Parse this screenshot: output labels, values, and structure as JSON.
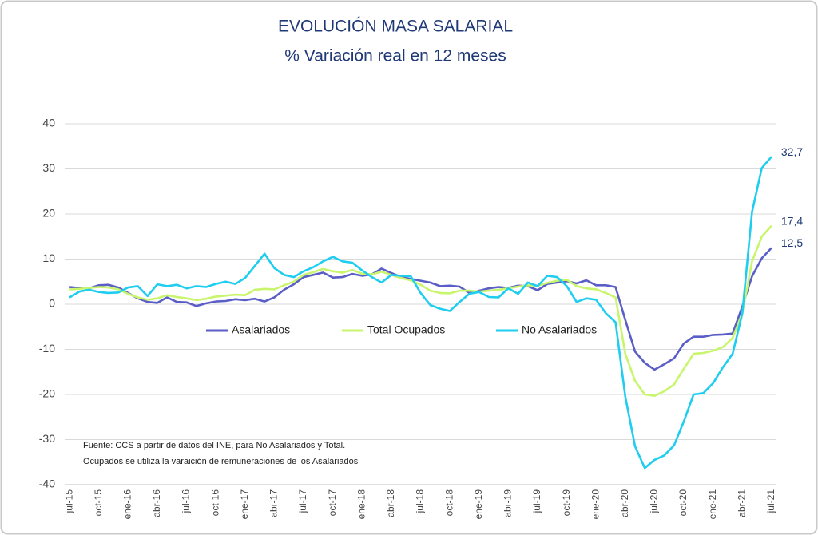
{
  "chart_data": {
    "type": "line",
    "title": "EVOLUCIÓN MASA SALARIAL",
    "subtitle": "% Variación real en 12 meses",
    "categories": [
      "jul-15",
      null,
      null,
      "oct-15",
      null,
      null,
      "ene-16",
      null,
      null,
      "abr-16",
      null,
      null,
      "jul-16",
      null,
      null,
      "oct-16",
      null,
      null,
      "ene-17",
      null,
      null,
      "abr-17",
      null,
      null,
      "jul-17",
      null,
      null,
      "oct-17",
      null,
      null,
      "ene-18",
      null,
      null,
      "abr-18",
      null,
      null,
      "jul-18",
      null,
      null,
      "oct-18",
      null,
      null,
      "ene-19",
      null,
      null,
      "abr-19",
      null,
      null,
      "jul-19",
      null,
      null,
      "oct-19",
      null,
      null,
      "ene-20",
      null,
      null,
      "abr-20",
      null,
      null,
      "jul-20",
      null,
      null,
      "oct-20",
      null,
      null,
      "ene-21",
      null,
      null,
      "abr-21",
      null,
      null,
      "jul-21"
    ],
    "ylim": [
      -40,
      40
    ],
    "yticks": [
      -40,
      -30,
      -20,
      -10,
      0,
      10,
      20,
      30,
      40
    ],
    "grid": true,
    "legend": "center",
    "note": [
      "Fuente: CCS a partir de datos del INE, para No Asalariados y Total.",
      "Ocupados se utiliza la varaición de remuneraciones de los Asalariados"
    ],
    "series": [
      {
        "name": "Asalariados",
        "color": "#5a5ec6",
        "values": [
          3.8,
          3.6,
          3.5,
          4.2,
          4.3,
          3.7,
          2.5,
          1.3,
          0.5,
          0.3,
          1.5,
          0.5,
          0.4,
          -0.4,
          0.2,
          0.6,
          0.7,
          1.1,
          0.9,
          1.2,
          0.6,
          1.5,
          3.2,
          4.4,
          6.0,
          6.5,
          7.0,
          5.9,
          6.0,
          6.7,
          6.3,
          6.6,
          7.9,
          6.9,
          6.0,
          5.6,
          5.2,
          4.8,
          4.0,
          4.1,
          3.9,
          2.5,
          3.0,
          3.5,
          3.8,
          3.6,
          4.1,
          4.0,
          3.1,
          4.5,
          4.8,
          5.1,
          4.6,
          5.3,
          4.2,
          4.2,
          3.8,
          -3.5,
          -10.5,
          -13.0,
          -14.5,
          -13.3,
          -12.0,
          -8.7,
          -7.2,
          -7.2,
          -6.8,
          -6.7,
          -6.5,
          -0.5,
          6.2,
          10.2,
          12.5
        ],
        "value_labels": [
          null,
          null,
          null,
          null,
          null,
          null,
          null,
          null,
          null,
          null,
          null,
          null,
          null,
          null,
          null,
          null,
          null,
          null,
          null,
          null,
          null,
          null,
          null,
          null,
          null,
          null,
          null,
          null,
          null,
          null,
          null,
          null,
          null,
          null,
          null,
          null,
          null,
          null,
          null,
          null,
          null,
          null,
          null,
          null,
          null,
          null,
          null,
          null,
          null,
          null,
          null,
          null,
          null,
          null,
          null,
          null,
          null,
          null,
          null,
          null,
          null,
          null,
          null,
          null,
          null,
          null,
          null,
          null,
          null,
          null,
          null,
          null,
          "12,5"
        ]
      },
      {
        "name": "Total Ocupados",
        "color": "#c8f56c",
        "values": [
          3.3,
          3.4,
          3.6,
          3.8,
          3.7,
          3.3,
          2.3,
          1.5,
          1.0,
          1.3,
          2.0,
          1.6,
          1.3,
          0.9,
          1.2,
          1.7,
          1.9,
          2.1,
          2.0,
          3.2,
          3.4,
          3.3,
          4.2,
          5.0,
          6.5,
          7.1,
          7.8,
          7.3,
          7.0,
          7.6,
          6.8,
          6.6,
          7.2,
          6.5,
          5.8,
          5.3,
          4.3,
          3.0,
          2.5,
          2.4,
          3.0,
          3.0,
          2.8,
          3.0,
          3.2,
          3.5,
          3.9,
          4.2,
          4.1,
          4.7,
          5.2,
          5.4,
          4.0,
          3.5,
          3.3,
          2.5,
          1.5,
          -11.0,
          -17.0,
          -20.0,
          -20.3,
          -19.3,
          -17.8,
          -14.3,
          -11.0,
          -10.8,
          -10.3,
          -9.5,
          -7.5,
          -2.0,
          9.5,
          15.0,
          17.4
        ],
        "value_labels": [
          null,
          null,
          null,
          null,
          null,
          null,
          null,
          null,
          null,
          null,
          null,
          null,
          null,
          null,
          null,
          null,
          null,
          null,
          null,
          null,
          null,
          null,
          null,
          null,
          null,
          null,
          null,
          null,
          null,
          null,
          null,
          null,
          null,
          null,
          null,
          null,
          null,
          null,
          null,
          null,
          null,
          null,
          null,
          null,
          null,
          null,
          null,
          null,
          null,
          null,
          null,
          null,
          null,
          null,
          null,
          null,
          null,
          null,
          null,
          null,
          null,
          null,
          null,
          null,
          null,
          null,
          null,
          null,
          null,
          null,
          null,
          null,
          "17,4"
        ]
      },
      {
        "name": "No Asalariados",
        "color": "#1ecdf0",
        "values": [
          1.5,
          2.8,
          3.2,
          2.7,
          2.5,
          2.6,
          3.7,
          4.0,
          1.8,
          4.4,
          4.0,
          4.3,
          3.5,
          4.0,
          3.8,
          4.5,
          5.0,
          4.5,
          5.8,
          8.5,
          11.2,
          8.0,
          6.5,
          6.0,
          7.3,
          8.2,
          9.5,
          10.5,
          9.5,
          9.2,
          7.5,
          6.0,
          4.8,
          6.5,
          6.3,
          6.2,
          2.5,
          -0.2,
          -1.0,
          -1.5,
          0.5,
          2.3,
          2.7,
          1.6,
          1.5,
          3.5,
          2.3,
          4.8,
          4.0,
          6.3,
          6.0,
          4.0,
          0.5,
          1.3,
          1.0,
          -2.0,
          -4.0,
          -20.5,
          -31.5,
          -36.3,
          -34.5,
          -33.5,
          -31.3,
          -26.0,
          -20.0,
          -19.7,
          -17.5,
          -14.0,
          -11.0,
          -2.0,
          20.5,
          30.2,
          32.7
        ],
        "value_labels": [
          null,
          null,
          null,
          null,
          null,
          null,
          null,
          null,
          null,
          null,
          null,
          null,
          null,
          null,
          null,
          null,
          null,
          null,
          null,
          null,
          null,
          null,
          null,
          null,
          null,
          null,
          null,
          null,
          null,
          null,
          null,
          null,
          null,
          null,
          null,
          null,
          null,
          null,
          null,
          null,
          null,
          null,
          null,
          null,
          null,
          null,
          null,
          null,
          null,
          null,
          null,
          null,
          null,
          null,
          null,
          null,
          null,
          null,
          null,
          null,
          null,
          null,
          null,
          null,
          null,
          null,
          null,
          null,
          null,
          null,
          null,
          null,
          "32,7"
        ]
      }
    ]
  }
}
